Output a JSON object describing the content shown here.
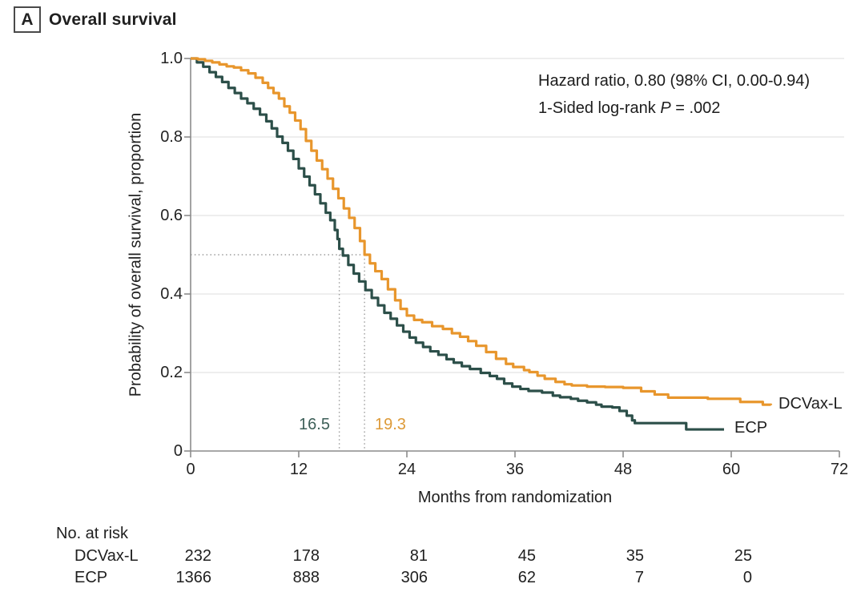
{
  "panel": {
    "label": "A",
    "title": "Overall survival"
  },
  "annotation": {
    "line1": "Hazard ratio, 0.80 (98% CI, 0.00-0.94)",
    "line2_prefix": "1-Sided log-rank ",
    "line2_p": "P",
    "line2_suffix": " = .002"
  },
  "chart_data": {
    "type": "line",
    "subtype": "kaplan-meier-step",
    "title": "Overall survival",
    "xlabel": "Months from randomization",
    "ylabel": "Probability of overall survival, proportion",
    "xlim": [
      0,
      72
    ],
    "ylim": [
      0,
      1.0
    ],
    "xticks": [
      0,
      12,
      24,
      36,
      48,
      60,
      72
    ],
    "yticks": [
      "0",
      "0.2",
      "0.4",
      "0.6",
      "0.8",
      "1.0"
    ],
    "grid": "horizontal-light",
    "legend_position": "end-of-curve",
    "median_reference_level": 0.5,
    "series": [
      {
        "name": "ECP",
        "color": "#2C4F49",
        "median_months": 16.5,
        "points": [
          [
            0,
            1.0
          ],
          [
            0.7,
            0.99
          ],
          [
            1.4,
            0.979
          ],
          [
            2.1,
            0.965
          ],
          [
            2.8,
            0.953
          ],
          [
            3.5,
            0.94
          ],
          [
            4.2,
            0.925
          ],
          [
            4.9,
            0.912
          ],
          [
            5.6,
            0.898
          ],
          [
            6.3,
            0.886
          ],
          [
            7,
            0.872
          ],
          [
            7.7,
            0.857
          ],
          [
            8.4,
            0.84
          ],
          [
            9,
            0.822
          ],
          [
            9.6,
            0.801
          ],
          [
            10.2,
            0.785
          ],
          [
            10.8,
            0.765
          ],
          [
            11.4,
            0.744
          ],
          [
            12,
            0.72
          ],
          [
            12.6,
            0.699
          ],
          [
            13.2,
            0.677
          ],
          [
            13.8,
            0.654
          ],
          [
            14.4,
            0.631
          ],
          [
            15,
            0.607
          ],
          [
            15.5,
            0.588
          ],
          [
            16,
            0.563
          ],
          [
            16.3,
            0.54
          ],
          [
            16.5,
            0.515
          ],
          [
            16.9,
            0.498
          ],
          [
            17.5,
            0.474
          ],
          [
            18.1,
            0.452
          ],
          [
            18.7,
            0.432
          ],
          [
            19.4,
            0.41
          ],
          [
            20.1,
            0.39
          ],
          [
            20.8,
            0.371
          ],
          [
            21.5,
            0.352
          ],
          [
            22.2,
            0.337
          ],
          [
            22.9,
            0.32
          ],
          [
            23.6,
            0.304
          ],
          [
            24.3,
            0.289
          ],
          [
            25,
            0.276
          ],
          [
            25.8,
            0.265
          ],
          [
            26.6,
            0.254
          ],
          [
            27.5,
            0.245
          ],
          [
            28.4,
            0.234
          ],
          [
            29.2,
            0.225
          ],
          [
            30.1,
            0.216
          ],
          [
            31,
            0.209
          ],
          [
            32.2,
            0.199
          ],
          [
            33.2,
            0.191
          ],
          [
            34,
            0.184
          ],
          [
            34.8,
            0.172
          ],
          [
            35.7,
            0.164
          ],
          [
            36.6,
            0.158
          ],
          [
            37.5,
            0.153
          ],
          [
            39,
            0.149
          ],
          [
            40.2,
            0.141
          ],
          [
            41,
            0.137
          ],
          [
            42.2,
            0.133
          ],
          [
            43,
            0.128
          ],
          [
            44,
            0.124
          ],
          [
            45,
            0.118
          ],
          [
            45.6,
            0.113
          ],
          [
            46.8,
            0.111
          ],
          [
            47.6,
            0.102
          ],
          [
            48.4,
            0.09
          ],
          [
            49,
            0.078
          ],
          [
            49.3,
            0.071
          ],
          [
            54.7,
            0.071
          ],
          [
            55,
            0.055
          ],
          [
            59.2,
            0.055
          ]
        ]
      },
      {
        "name": "DCVax-L",
        "color": "#E8962C",
        "median_months": 19.3,
        "points": [
          [
            0,
            1.0
          ],
          [
            0.8,
            0.998
          ],
          [
            1.6,
            0.994
          ],
          [
            2.4,
            0.99
          ],
          [
            3.2,
            0.985
          ],
          [
            4,
            0.98
          ],
          [
            4.8,
            0.977
          ],
          [
            5.6,
            0.97
          ],
          [
            6.4,
            0.962
          ],
          [
            7.2,
            0.951
          ],
          [
            8,
            0.938
          ],
          [
            8.6,
            0.925
          ],
          [
            9.2,
            0.912
          ],
          [
            9.8,
            0.898
          ],
          [
            10.4,
            0.878
          ],
          [
            11,
            0.862
          ],
          [
            11.6,
            0.842
          ],
          [
            12.2,
            0.82
          ],
          [
            12.8,
            0.79
          ],
          [
            13.4,
            0.765
          ],
          [
            14,
            0.74
          ],
          [
            14.6,
            0.718
          ],
          [
            15.2,
            0.694
          ],
          [
            15.8,
            0.668
          ],
          [
            16.4,
            0.644
          ],
          [
            17,
            0.618
          ],
          [
            17.6,
            0.594
          ],
          [
            18.2,
            0.568
          ],
          [
            18.8,
            0.535
          ],
          [
            19.3,
            0.5
          ],
          [
            19.9,
            0.478
          ],
          [
            20.5,
            0.458
          ],
          [
            21.2,
            0.438
          ],
          [
            21.9,
            0.412
          ],
          [
            22.7,
            0.384
          ],
          [
            23.3,
            0.362
          ],
          [
            24,
            0.345
          ],
          [
            24.8,
            0.334
          ],
          [
            25.7,
            0.328
          ],
          [
            26.8,
            0.318
          ],
          [
            28,
            0.311
          ],
          [
            29,
            0.3
          ],
          [
            29.9,
            0.291
          ],
          [
            30.8,
            0.28
          ],
          [
            31.7,
            0.268
          ],
          [
            32.8,
            0.252
          ],
          [
            33.9,
            0.235
          ],
          [
            35,
            0.222
          ],
          [
            35.8,
            0.214
          ],
          [
            37,
            0.206
          ],
          [
            37.6,
            0.201
          ],
          [
            38.5,
            0.192
          ],
          [
            39.3,
            0.184
          ],
          [
            40.5,
            0.176
          ],
          [
            41.5,
            0.17
          ],
          [
            42.3,
            0.167
          ],
          [
            44,
            0.164
          ],
          [
            46,
            0.163
          ],
          [
            48,
            0.161
          ],
          [
            50,
            0.152
          ],
          [
            51.5,
            0.144
          ],
          [
            53,
            0.136
          ],
          [
            57.4,
            0.133
          ],
          [
            61,
            0.125
          ],
          [
            63.5,
            0.118
          ],
          [
            64.4,
            0.117
          ]
        ]
      }
    ]
  },
  "medians": {
    "ecp_label": "16.5",
    "dcvax_label": "19.3"
  },
  "curve_labels": {
    "dcvax": "DCVax-L",
    "ecp": "ECP"
  },
  "at_risk": {
    "title": "No. at risk",
    "months": [
      0,
      12,
      24,
      36,
      48,
      60
    ],
    "rows": [
      {
        "name": "DCVax-L",
        "counts": [
          232,
          178,
          81,
          45,
          35,
          25
        ]
      },
      {
        "name": "ECP",
        "counts": [
          1366,
          888,
          306,
          62,
          7,
          0
        ]
      }
    ]
  },
  "colors": {
    "dcvax": "#E8962C",
    "ecp": "#2C4F49",
    "axis": "#8C8C8C",
    "grid": "#E3E3E3",
    "dotted": "#9C9C9C",
    "text": "#222222"
  }
}
